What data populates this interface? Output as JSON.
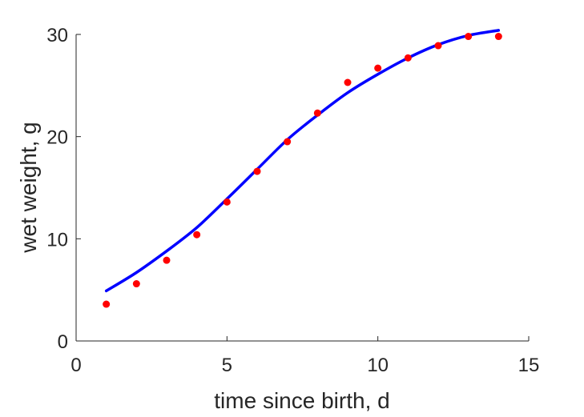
{
  "chart_data": {
    "type": "scatter",
    "xlabel": "time since birth, d",
    "ylabel": "wet weight, g",
    "xlim": [
      0,
      15
    ],
    "ylim": [
      0,
      30
    ],
    "xticks": [
      "0",
      "5",
      "10",
      "15"
    ],
    "yticks": [
      "0",
      "10",
      "20",
      "30"
    ],
    "grid": false,
    "legend": "none",
    "series": [
      {
        "kind": "scatter",
        "color": "#ff0000",
        "x": [
          1,
          2,
          3,
          4,
          5,
          6,
          7,
          8,
          9,
          10,
          11,
          12,
          13,
          14
        ],
        "y": [
          3.6,
          5.6,
          7.9,
          10.4,
          13.6,
          16.6,
          19.5,
          22.3,
          25.3,
          26.7,
          27.7,
          28.9,
          29.8,
          29.8
        ]
      },
      {
        "kind": "line",
        "color": "#0000ff",
        "x": [
          1,
          2,
          3,
          4,
          5,
          6,
          7,
          8,
          9,
          10,
          11,
          12,
          13,
          14
        ],
        "y": [
          4.9,
          6.7,
          8.8,
          11.1,
          13.9,
          16.8,
          19.7,
          22.1,
          24.3,
          26.1,
          27.7,
          29.0,
          29.9,
          30.4
        ]
      }
    ]
  }
}
